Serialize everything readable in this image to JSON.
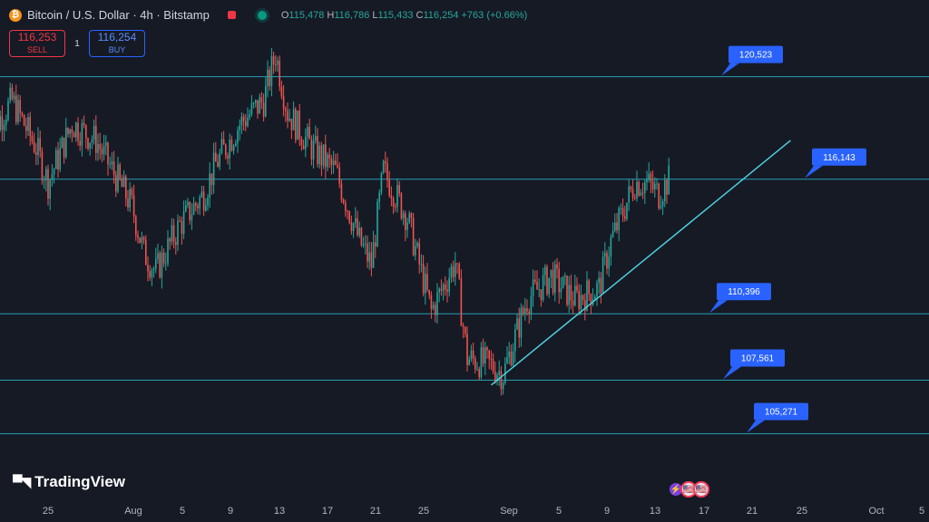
{
  "header": {
    "symbol": "Bitcoin / U.S. Dollar · 4h · Bitstamp",
    "icon": "bitcoin-icon",
    "open_label": "O",
    "open": "115,478",
    "high_label": "H",
    "high": "116,786",
    "low_label": "L",
    "low": "115,433",
    "close_label": "C",
    "close": "116,254",
    "change": "+763 (+0.66%)"
  },
  "trade": {
    "sell_price": "116,253",
    "sell_label": "SELL",
    "qty": "1",
    "buy_price": "116,254",
    "buy_label": "BUY"
  },
  "branding": {
    "logo_text": "TradingView"
  },
  "events": [
    {
      "icon": "lightning-icon",
      "glyph": "⚡"
    },
    {
      "icon": "us-flag-icon",
      "glyph": "🇺🇸"
    },
    {
      "icon": "us-flag-icon",
      "glyph": "🇺🇸"
    }
  ],
  "colors": {
    "up": "#26a69a",
    "down": "#ef5350",
    "level_line": "#2bb6cf",
    "trend_line": "#4dd0e1",
    "callout": "#2962ff",
    "background": "#161a25"
  },
  "chart_data": {
    "type": "candlestick",
    "timeframe": "4h",
    "ylim": [
      101500,
      123800
    ],
    "x_ticks": [
      "25",
      "Aug",
      "5",
      "9",
      "13",
      "17",
      "21",
      "25",
      "Sep",
      "5",
      "9",
      "13",
      "17",
      "21",
      "25",
      "Oct",
      "5"
    ],
    "horizontal_levels": [
      {
        "label": "120,523",
        "value": 120523
      },
      {
        "label": "116,143",
        "value": 116143
      },
      {
        "label": "110,396",
        "value": 110396
      },
      {
        "label": "107,561",
        "value": 107561
      },
      {
        "label": "105,271",
        "value": 105271
      }
    ],
    "trend_line": {
      "from": {
        "date": "2025-08-31",
        "price": 107350
      },
      "to": {
        "date": "2025-09-25",
        "price": 117800
      }
    },
    "price_path": [
      {
        "date": "2025-07-20",
        "close": 118000
      },
      {
        "date": "2025-07-22",
        "close": 119500
      },
      {
        "date": "2025-07-24",
        "close": 117500
      },
      {
        "date": "2025-07-25",
        "close": 116000
      },
      {
        "date": "2025-07-27",
        "close": 118500
      },
      {
        "date": "2025-07-29",
        "close": 117800
      },
      {
        "date": "2025-08-01",
        "close": 115000
      },
      {
        "date": "2025-08-02",
        "close": 113000
      },
      {
        "date": "2025-08-03",
        "close": 112200
      },
      {
        "date": "2025-08-05",
        "close": 114200
      },
      {
        "date": "2025-08-07",
        "close": 115500
      },
      {
        "date": "2025-08-08",
        "close": 116800
      },
      {
        "date": "2025-08-10",
        "close": 118500
      },
      {
        "date": "2025-08-12",
        "close": 119500
      },
      {
        "date": "2025-08-13",
        "close": 121500
      },
      {
        "date": "2025-08-14",
        "close": 119000
      },
      {
        "date": "2025-08-16",
        "close": 117500
      },
      {
        "date": "2025-08-18",
        "close": 116500
      },
      {
        "date": "2025-08-20",
        "close": 113500
      },
      {
        "date": "2025-08-21",
        "close": 112500
      },
      {
        "date": "2025-08-22",
        "close": 116500
      },
      {
        "date": "2025-08-24",
        "close": 114500
      },
      {
        "date": "2025-08-26",
        "close": 110500
      },
      {
        "date": "2025-08-28",
        "close": 112600
      },
      {
        "date": "2025-08-29",
        "close": 108500
      },
      {
        "date": "2025-08-31",
        "close": 108200
      },
      {
        "date": "2025-09-01",
        "close": 107800
      },
      {
        "date": "2025-09-03",
        "close": 111000
      },
      {
        "date": "2025-09-05",
        "close": 112000
      },
      {
        "date": "2025-09-07",
        "close": 111000
      },
      {
        "date": "2025-09-09",
        "close": 111500
      },
      {
        "date": "2025-09-10",
        "close": 113500
      },
      {
        "date": "2025-09-12",
        "close": 116000
      },
      {
        "date": "2025-09-13",
        "close": 116000
      },
      {
        "date": "2025-09-14",
        "close": 115500
      },
      {
        "date": "2025-09-15",
        "close": 116254
      }
    ]
  }
}
